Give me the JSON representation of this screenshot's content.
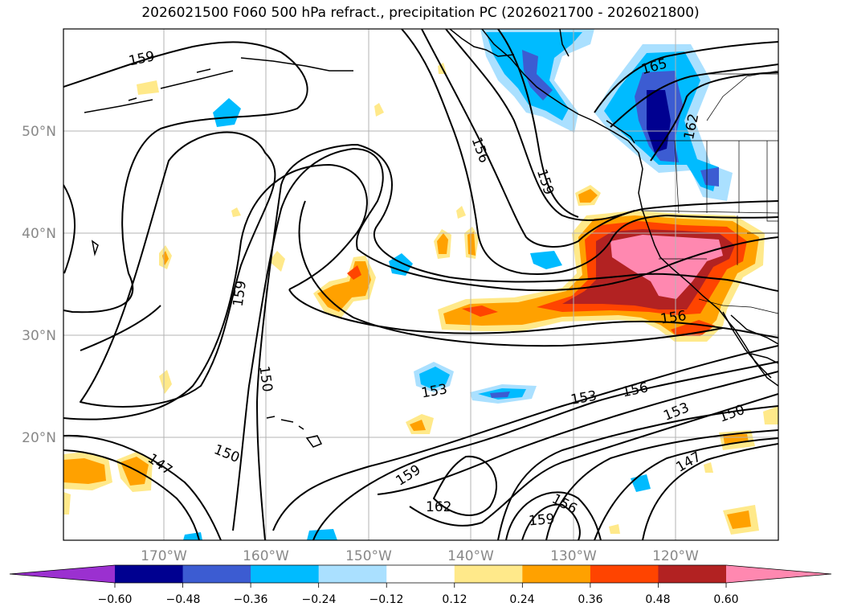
{
  "title": "2026021500 F060 500 hPa refract., precipitation PC (2026021700 - 2026021800)",
  "latitude_labels": [
    "50°N",
    "40°N",
    "30°N",
    "20°N"
  ],
  "longitude_labels": [
    "170°W",
    "160°W",
    "150°W",
    "140°W",
    "130°W",
    "120°W"
  ],
  "contour_labels": [
    "159",
    "165",
    "162",
    "156",
    "159",
    "159",
    "150",
    "153",
    "153",
    "156",
    "153",
    "150",
    "147",
    "150",
    "147",
    "159",
    "162",
    "159",
    "156",
    "156"
  ],
  "colorbar": {
    "ticks": [
      "−0.60",
      "−0.48",
      "−0.36",
      "−0.24",
      "−0.12",
      "0.12",
      "0.24",
      "0.36",
      "0.48",
      "0.60"
    ],
    "colors": [
      "#9b30d0",
      "#000090",
      "#3c5cd2",
      "#00bbff",
      "#aae0ff",
      "#ffffff",
      "#ffe98a",
      "#ffa100",
      "#ff4400",
      "#b22222",
      "#ff88b0"
    ]
  },
  "colors": {
    "light_yellow": "#ffe98a",
    "orange": "#ffa100",
    "red_orange": "#ff4400",
    "dark_red": "#b22222",
    "pink": "#ff88b0",
    "light_blue": "#aae0ff",
    "cyan": "#00bbff",
    "blue": "#3c5cd2",
    "navy": "#000090"
  }
}
